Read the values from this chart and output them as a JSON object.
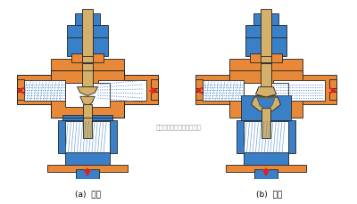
{
  "bg_color": "#ffffff",
  "orange": "#E8893A",
  "blue": "#3A80C8",
  "light_blue": "#B8D4F0",
  "tan": "#D4B06A",
  "red": "#DD2222",
  "dark": "#222222",
  "label_a": "(a)  分流",
  "label_b": "(b)  合流",
  "watermark": "多仪阀门（上海）有限公司",
  "fig_width": 4.0,
  "fig_height": 2.3,
  "dpi": 100
}
